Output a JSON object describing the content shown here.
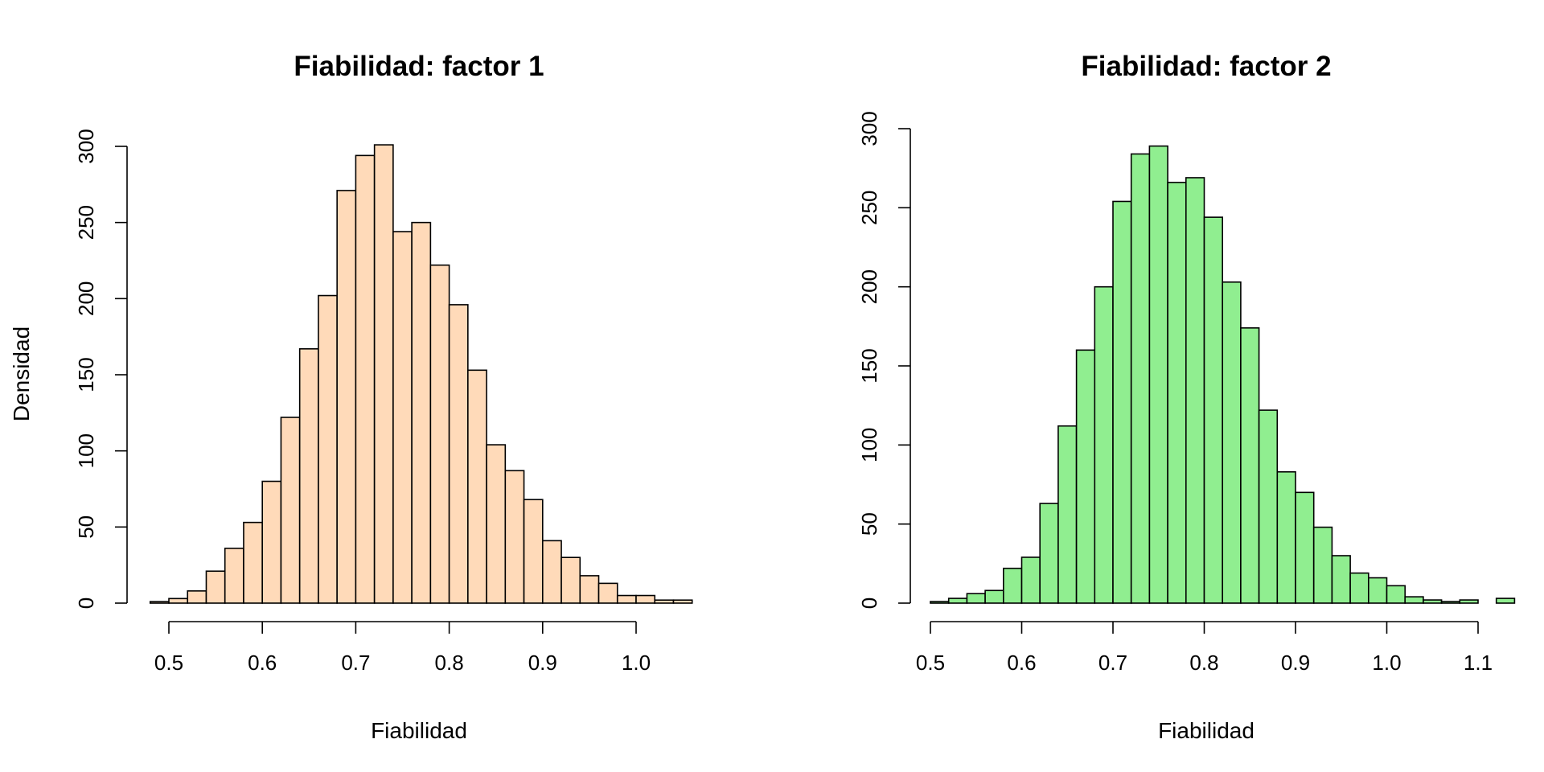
{
  "chart_data": [
    {
      "type": "histogram",
      "title": "Fiabilidad: factor 1",
      "xlabel": "Fiabilidad",
      "ylabel": "Densidad",
      "bar_color": "#FFDAB9",
      "edge_color": "#000000",
      "xlim": [
        0.48,
        1.06
      ],
      "ylim": [
        0,
        300
      ],
      "x_ticks": [
        0.5,
        0.6,
        0.7,
        0.8,
        0.9,
        1.0
      ],
      "x_tick_labels": [
        "0.5",
        "0.6",
        "0.7",
        "0.8",
        "0.9",
        "1.0"
      ],
      "y_ticks": [
        0,
        50,
        100,
        150,
        200,
        250,
        300
      ],
      "y_tick_labels": [
        "0",
        "50",
        "100",
        "150",
        "200",
        "250",
        "300"
      ],
      "bin_edges": [
        0.48,
        0.5,
        0.52,
        0.54,
        0.56,
        0.58,
        0.6,
        0.62,
        0.64,
        0.66,
        0.68,
        0.7,
        0.72,
        0.74,
        0.76,
        0.78,
        0.8,
        0.82,
        0.84,
        0.86,
        0.88,
        0.9,
        0.92,
        0.94,
        0.96,
        0.98,
        1.0,
        1.02,
        1.04,
        1.06
      ],
      "counts": [
        1,
        3,
        8,
        21,
        36,
        53,
        80,
        122,
        167,
        202,
        271,
        294,
        301,
        244,
        250,
        222,
        196,
        153,
        104,
        87,
        68,
        41,
        30,
        18,
        13,
        5,
        5,
        2,
        2
      ]
    },
    {
      "type": "histogram",
      "title": "Fiabilidad: factor 2",
      "xlabel": "Fiabilidad",
      "ylabel": "",
      "bar_color": "#90EE90",
      "edge_color": "#000000",
      "xlim": [
        0.5,
        1.14
      ],
      "ylim": [
        0,
        300
      ],
      "x_ticks": [
        0.5,
        0.6,
        0.7,
        0.8,
        0.9,
        1.0,
        1.1
      ],
      "x_tick_labels": [
        "0.5",
        "0.6",
        "0.7",
        "0.8",
        "0.9",
        "1.0",
        "1.1"
      ],
      "y_ticks": [
        0,
        50,
        100,
        150,
        200,
        250,
        300
      ],
      "y_tick_labels": [
        "0",
        "50",
        "100",
        "150",
        "200",
        "250",
        "300"
      ],
      "bin_edges": [
        0.5,
        0.52,
        0.54,
        0.56,
        0.58,
        0.6,
        0.62,
        0.64,
        0.66,
        0.68,
        0.7,
        0.72,
        0.74,
        0.76,
        0.78,
        0.8,
        0.82,
        0.84,
        0.86,
        0.88,
        0.9,
        0.92,
        0.94,
        0.96,
        0.98,
        1.0,
        1.02,
        1.04,
        1.06,
        1.08,
        1.1,
        1.12,
        1.14
      ],
      "counts": [
        1,
        3,
        6,
        8,
        22,
        29,
        63,
        112,
        160,
        200,
        254,
        284,
        289,
        266,
        269,
        244,
        203,
        174,
        122,
        83,
        70,
        48,
        30,
        19,
        16,
        11,
        4,
        2,
        1,
        2,
        0,
        3
      ]
    }
  ]
}
